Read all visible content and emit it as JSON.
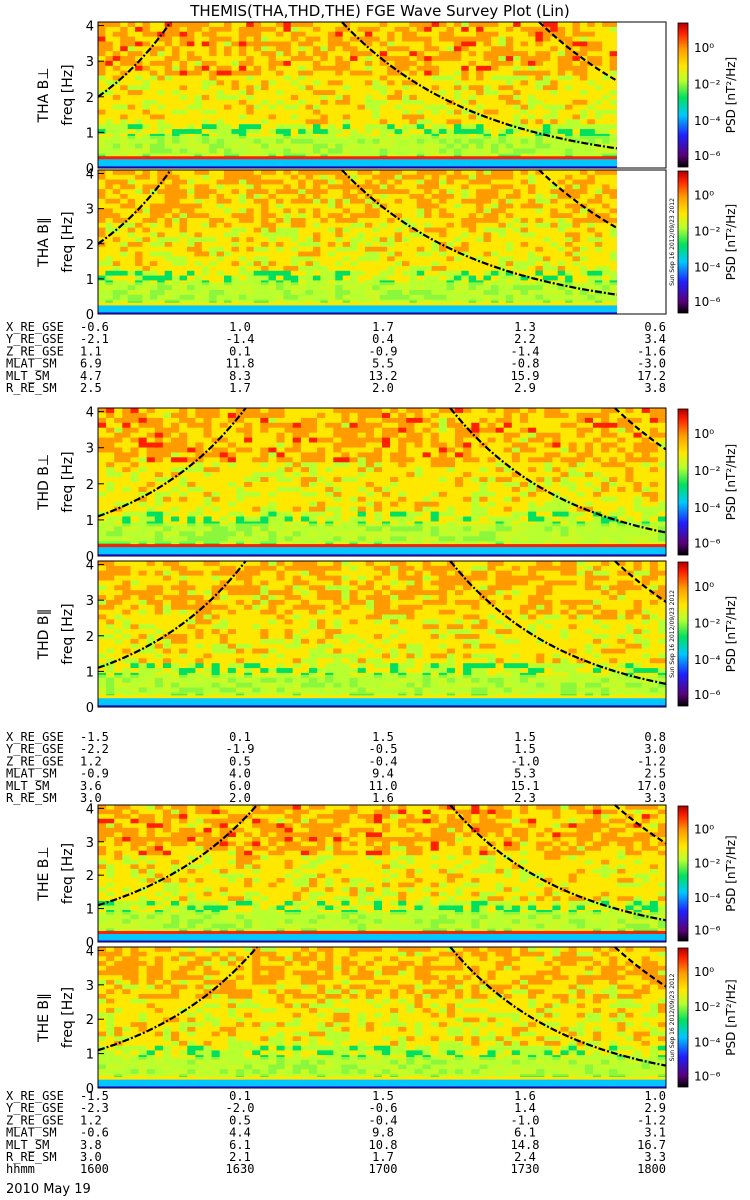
{
  "title": "THEMIS(THA,THD,THE) FGE Wave Survey Plot (Lin)",
  "chart_data": {
    "type": "heatmap",
    "ylabel": "freq [Hz]",
    "ylim": [
      0,
      4.1
    ],
    "yticks": [
      "0",
      "1",
      "2",
      "3",
      "4"
    ],
    "colorbar": {
      "label": "PSD [nT²/Hz]",
      "ticks": [
        "10⁰",
        "10⁻²",
        "10⁻⁴",
        "10⁻⁶"
      ],
      "scale": "log"
    },
    "side_stamp": "Sun Sep 16 2012/09/23 2012",
    "panels": [
      {
        "name": "THA B⊥",
        "probe": "THA",
        "component": "perp"
      },
      {
        "name": "THA B∥",
        "probe": "THA",
        "component": "par"
      },
      {
        "name": "THD B⊥",
        "probe": "THD",
        "component": "perp"
      },
      {
        "name": "THD B∥",
        "probe": "THD",
        "component": "par"
      },
      {
        "name": "THE B⊥",
        "probe": "THE",
        "component": "perp"
      },
      {
        "name": "THE B∥",
        "probe": "THE",
        "component": "par"
      }
    ],
    "ephemeris_blocks": [
      {
        "probe": "THA",
        "rows": [
          {
            "label": "X_RE_GSE",
            "values": [
              "-0.6",
              "1.0",
              "1.7",
              "1.3",
              "0.6"
            ]
          },
          {
            "label": "Y_RE_GSE",
            "values": [
              "-2.1",
              "-1.4",
              "0.4",
              "2.2",
              "3.4"
            ]
          },
          {
            "label": "Z_RE_GSE",
            "values": [
              "1.1",
              "0.1",
              "-0.9",
              "-1.4",
              "-1.6"
            ]
          },
          {
            "label": "MLAT_SM",
            "values": [
              "6.9",
              "11.8",
              "5.5",
              "-0.8",
              "-3.0"
            ]
          },
          {
            "label": "MLT_SM",
            "values": [
              "4.7",
              "8.3",
              "13.2",
              "15.9",
              "17.2"
            ]
          },
          {
            "label": "R_RE_SM",
            "values": [
              "2.5",
              "1.7",
              "2.0",
              "2.9",
              "3.8"
            ]
          }
        ]
      },
      {
        "probe": "THD",
        "rows": [
          {
            "label": "X_RE_GSE",
            "values": [
              "-1.5",
              "0.1",
              "1.5",
              "1.5",
              "0.8"
            ]
          },
          {
            "label": "Y_RE_GSE",
            "values": [
              "-2.2",
              "-1.9",
              "-0.5",
              "1.5",
              "3.0"
            ]
          },
          {
            "label": "Z_RE_GSE",
            "values": [
              "1.2",
              "0.5",
              "-0.4",
              "-1.0",
              "-1.2"
            ]
          },
          {
            "label": "MLAT_SM",
            "values": [
              "-0.9",
              "4.0",
              "9.4",
              "5.3",
              "2.5"
            ]
          },
          {
            "label": "MLT_SM",
            "values": [
              "3.6",
              "6.0",
              "11.0",
              "15.1",
              "17.0"
            ]
          },
          {
            "label": "R_RE_SM",
            "values": [
              "3.0",
              "2.0",
              "1.6",
              "2.3",
              "3.3"
            ]
          }
        ]
      },
      {
        "probe": "THE",
        "rows": [
          {
            "label": "X_RE_GSE",
            "values": [
              "-1.5",
              "0.1",
              "1.5",
              "1.6",
              "1.0"
            ]
          },
          {
            "label": "Y_RE_GSE",
            "values": [
              "-2.3",
              "-2.0",
              "-0.6",
              "1.4",
              "2.9"
            ]
          },
          {
            "label": "Z_RE_GSE",
            "values": [
              "1.2",
              "0.5",
              "-0.4",
              "-1.0",
              "-1.2"
            ]
          },
          {
            "label": "MLAT_SM",
            "values": [
              "-0.6",
              "4.4",
              "9.8",
              "6.1",
              "3.1"
            ]
          },
          {
            "label": "MLT_SM",
            "values": [
              "3.8",
              "6.1",
              "10.8",
              "14.8",
              "16.7"
            ]
          },
          {
            "label": "R_RE_SM",
            "values": [
              "3.0",
              "2.1",
              "1.7",
              "2.4",
              "3.3"
            ]
          }
        ],
        "time_row": {
          "label": "hhmm",
          "values": [
            "1600",
            "1630",
            "1700",
            "1730",
            "1800"
          ]
        }
      }
    ],
    "date": "2010 May 19",
    "colors": {
      "colormap": [
        "#000000",
        "#6a0080",
        "#2020ff",
        "#00c8ff",
        "#00e060",
        "#b8ff30",
        "#ffe800",
        "#ff9a00",
        "#ff2000",
        "#b00000"
      ],
      "curve": "#000000"
    }
  }
}
